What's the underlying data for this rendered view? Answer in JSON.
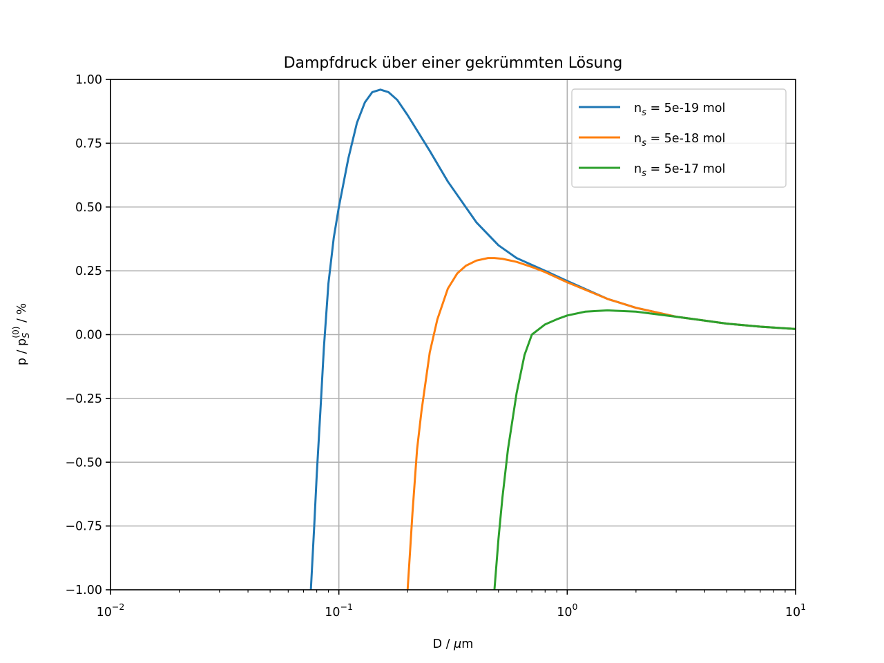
{
  "chart_data": {
    "type": "line",
    "title": "Dampfdruck über einer gekrümmten Lösung",
    "xlabel": "D / μm",
    "ylabel": "p / p_s^(0) / %",
    "xscale": "log",
    "xlim": [
      0.01,
      10
    ],
    "ylim": [
      -1.0,
      1.0
    ],
    "grid": true,
    "legend_position": "top-right",
    "x_ticks": [
      {
        "value": 0.01,
        "base": "10",
        "exp": "−2"
      },
      {
        "value": 0.1,
        "base": "10",
        "exp": "−1"
      },
      {
        "value": 1,
        "base": "10",
        "exp": "0"
      },
      {
        "value": 10,
        "base": "10",
        "exp": "1"
      }
    ],
    "y_ticks": [
      {
        "value": 1.0,
        "label": "1.00"
      },
      {
        "value": 0.75,
        "label": "0.75"
      },
      {
        "value": 0.5,
        "label": "0.50"
      },
      {
        "value": 0.25,
        "label": "0.25"
      },
      {
        "value": 0.0,
        "label": "0.00"
      },
      {
        "value": -0.25,
        "label": "−0.25"
      },
      {
        "value": -0.5,
        "label": "−0.50"
      },
      {
        "value": -0.75,
        "label": "−0.75"
      },
      {
        "value": -1.0,
        "label": "−1.00"
      }
    ],
    "series": [
      {
        "name": "n_s = 5e-19 mol",
        "legend_prefix": "n",
        "legend_sub": "s",
        "legend_suffix": " = 5e-19 mol",
        "color": "#1f77b4",
        "x": [
          0.0754,
          0.078,
          0.08,
          0.083,
          0.086,
          0.09,
          0.095,
          0.1,
          0.11,
          0.12,
          0.13,
          0.14,
          0.152,
          0.165,
          0.18,
          0.2,
          0.25,
          0.3,
          0.4,
          0.5,
          0.6,
          0.8,
          1.0,
          1.5,
          2,
          3,
          5,
          7,
          10
        ],
        "y": [
          -1.0,
          -0.75,
          -0.55,
          -0.3,
          -0.05,
          0.2,
          0.38,
          0.5,
          0.69,
          0.83,
          0.91,
          0.95,
          0.96,
          0.95,
          0.92,
          0.86,
          0.72,
          0.6,
          0.44,
          0.35,
          0.3,
          0.25,
          0.21,
          0.14,
          0.105,
          0.07,
          0.043,
          0.031,
          0.022
        ]
      },
      {
        "name": "n_s = 5e-18 mol",
        "legend_prefix": "n",
        "legend_sub": "s",
        "legend_suffix": " = 5e-18 mol",
        "color": "#ff7f0e",
        "x": [
          0.2,
          0.205,
          0.21,
          0.22,
          0.23,
          0.25,
          0.27,
          0.3,
          0.33,
          0.36,
          0.4,
          0.45,
          0.48,
          0.52,
          0.6,
          0.7,
          0.8,
          1.0,
          1.5,
          2,
          3,
          5,
          7,
          10
        ],
        "y": [
          -1.0,
          -0.85,
          -0.7,
          -0.45,
          -0.3,
          -0.07,
          0.06,
          0.18,
          0.24,
          0.27,
          0.29,
          0.3,
          0.3,
          0.297,
          0.285,
          0.265,
          0.245,
          0.205,
          0.14,
          0.105,
          0.07,
          0.043,
          0.031,
          0.022
        ]
      },
      {
        "name": "n_s = 5e-17 mol",
        "legend_prefix": "n",
        "legend_sub": "s",
        "legend_suffix": " = 5e-17 mol",
        "color": "#2ca02c",
        "x": [
          0.48,
          0.5,
          0.52,
          0.55,
          0.6,
          0.65,
          0.7,
          0.8,
          0.9,
          1.0,
          1.2,
          1.5,
          2,
          3,
          5,
          7,
          10
        ],
        "y": [
          -1.0,
          -0.8,
          -0.64,
          -0.45,
          -0.23,
          -0.08,
          0.0,
          0.04,
          0.06,
          0.075,
          0.09,
          0.095,
          0.09,
          0.07,
          0.043,
          0.031,
          0.022
        ]
      }
    ]
  }
}
